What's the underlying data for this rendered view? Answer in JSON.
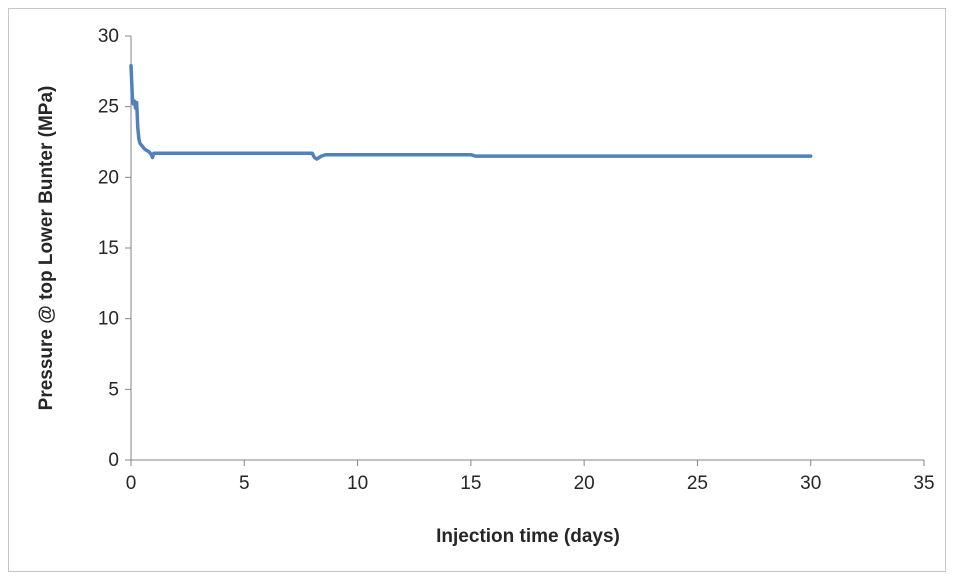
{
  "chart_data": {
    "type": "line",
    "title": "",
    "xlabel": "Injection time (days)",
    "ylabel": "Pressure @ top Lower Bunter (MPa)",
    "xlim": [
      0,
      35
    ],
    "ylim": [
      0,
      30
    ],
    "x_ticks": [
      0,
      5,
      10,
      15,
      20,
      25,
      30,
      35
    ],
    "y_ticks": [
      0,
      5,
      10,
      15,
      20,
      25,
      30
    ],
    "grid": false,
    "legend": "none",
    "series_color": "#4f81bd",
    "series": [
      {
        "x": [
          0,
          0.03,
          0.06,
          0.1,
          0.15,
          0.2,
          0.25,
          0.3,
          0.35,
          0.4,
          0.5,
          0.6,
          0.7,
          0.8,
          0.9,
          0.95,
          1.0,
          1.5,
          3,
          5,
          7,
          8.0,
          8.1,
          8.2,
          8.4,
          8.6,
          9,
          12,
          15.0,
          15.2,
          20,
          25,
          30
        ],
        "y": [
          27.9,
          26.8,
          25.6,
          25.2,
          25.4,
          24.9,
          25.3,
          23.5,
          22.7,
          22.4,
          22.2,
          22.0,
          21.9,
          21.8,
          21.6,
          21.4,
          21.7,
          21.7,
          21.7,
          21.7,
          21.7,
          21.7,
          21.4,
          21.3,
          21.5,
          21.6,
          21.6,
          21.6,
          21.6,
          21.5,
          21.5,
          21.5,
          21.5
        ]
      }
    ]
  }
}
